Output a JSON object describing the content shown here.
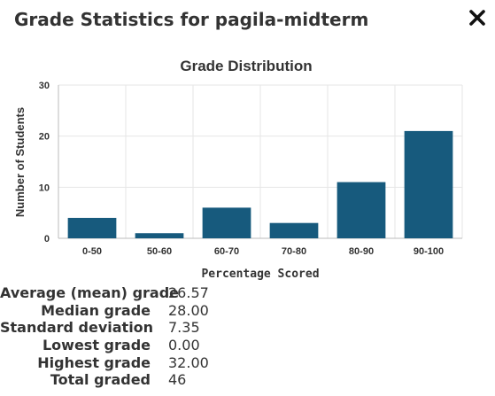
{
  "dialog": {
    "title": "Grade Statistics for pagila-midterm",
    "close_icon": "close-icon"
  },
  "chart_data": {
    "type": "bar",
    "title": "Grade Distribution",
    "xlabel": "Percentage Scored",
    "ylabel": "Number of Students",
    "categories": [
      "0-50",
      "50-60",
      "60-70",
      "70-80",
      "80-90",
      "90-100"
    ],
    "values": [
      4,
      1,
      6,
      3,
      11,
      21
    ],
    "ylim": [
      0,
      30
    ],
    "yticks": [
      0,
      10,
      20,
      30
    ],
    "bar_color": "#175a7d",
    "grid": true,
    "legend": "none"
  },
  "stats": [
    {
      "label": "Average (mean) grade",
      "value": "26.57"
    },
    {
      "label": "Median grade",
      "value": "28.00"
    },
    {
      "label": "Standard deviation",
      "value": "7.35"
    },
    {
      "label": "Lowest grade",
      "value": "0.00"
    },
    {
      "label": "Highest grade",
      "value": "32.00"
    },
    {
      "label": "Total graded",
      "value": "46"
    }
  ]
}
